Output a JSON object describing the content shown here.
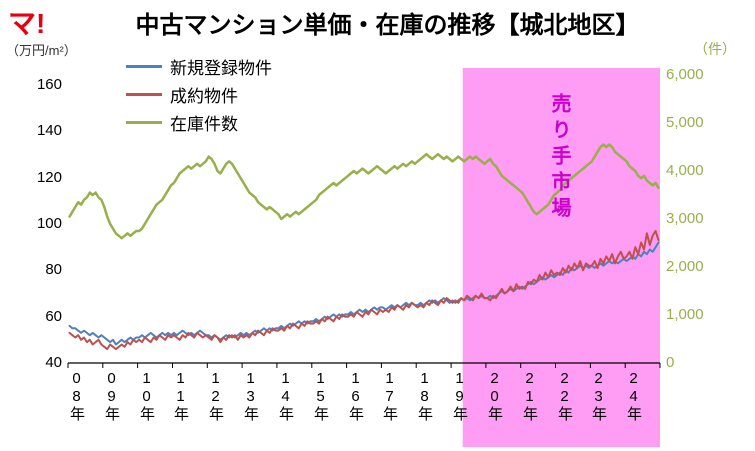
{
  "logo": "マ!",
  "chart_data": {
    "type": "line",
    "title": "中古マンション単価・在庫の推移【城北地区】",
    "left_axis": {
      "unit": "（万円/m²）",
      "min": 40,
      "max": 160,
      "ticks": [
        160,
        140,
        120,
        100,
        80,
        60,
        40
      ]
    },
    "right_axis": {
      "unit": "（件）",
      "min": 0,
      "max": 6000,
      "color": "#9aae4b",
      "ticks": [
        {
          "label": "6,000",
          "value": 6000
        },
        {
          "label": "5,000",
          "value": 5000
        },
        {
          "label": "4,000",
          "value": 4000
        },
        {
          "label": "3,000",
          "value": 3000
        },
        {
          "label": "2,000",
          "value": 2000
        },
        {
          "label": "1,000",
          "value": 1000
        },
        {
          "label": "0",
          "value": 0
        }
      ]
    },
    "x_axis": {
      "start": "2008-01",
      "end": "2024-12",
      "interval": "month",
      "tick_labels": [
        "08年",
        "09年",
        "10年",
        "11年",
        "12年",
        "13年",
        "14年",
        "15年",
        "16年",
        "17年",
        "18年",
        "19年",
        "20年",
        "21年",
        "22年",
        "23年",
        "24年"
      ]
    },
    "highlight": {
      "approx_start": "2019-05",
      "start_index": 136,
      "color": "#ff9cf3"
    },
    "annotation": {
      "text": "売り手市場",
      "color": "#cc00cc"
    },
    "series": [
      {
        "id": "new-listings",
        "name": "新規登録物件",
        "axis": "left",
        "color": "#4f81bd",
        "values": [
          56,
          55,
          55,
          54,
          53,
          54,
          53,
          52,
          53,
          52,
          51,
          52,
          51,
          50,
          49,
          50,
          48,
          49,
          50,
          49,
          50,
          51,
          50,
          51,
          51,
          52,
          51,
          52,
          53,
          52,
          51,
          52,
          53,
          52,
          53,
          52,
          53,
          52,
          53,
          54,
          53,
          52,
          53,
          52,
          53,
          54,
          53,
          52,
          52,
          51,
          52,
          51,
          50,
          51,
          52,
          51,
          52,
          51,
          52,
          53,
          52,
          53,
          52,
          53,
          54,
          53,
          54,
          55,
          54,
          55,
          54,
          55,
          55,
          56,
          55,
          56,
          57,
          56,
          57,
          58,
          57,
          58,
          57,
          58,
          58,
          59,
          58,
          59,
          60,
          59,
          60,
          61,
          60,
          61,
          60,
          61,
          61,
          62,
          61,
          62,
          63,
          62,
          63,
          62,
          63,
          64,
          63,
          64,
          64,
          63,
          64,
          65,
          64,
          65,
          64,
          65,
          66,
          65,
          66,
          65,
          65,
          66,
          65,
          66,
          67,
          66,
          67,
          66,
          67,
          68,
          67,
          66,
          67,
          66,
          67,
          68,
          67,
          68,
          67,
          68,
          69,
          68,
          69,
          68,
          68,
          69,
          68,
          69,
          70,
          71,
          70,
          71,
          72,
          71,
          72,
          73,
          72,
          73,
          74,
          75,
          74,
          75,
          76,
          77,
          76,
          77,
          78,
          77,
          78,
          79,
          78,
          80,
          79,
          81,
          80,
          81,
          82,
          81,
          82,
          81,
          82,
          81,
          82,
          83,
          82,
          83,
          84,
          83,
          84,
          83,
          84,
          85,
          84,
          85,
          86,
          85,
          87,
          86,
          88,
          87,
          89,
          88,
          90,
          92
        ]
      },
      {
        "id": "contracted",
        "name": "成約物件",
        "axis": "left",
        "color": "#c0504d",
        "values": [
          53,
          52,
          51,
          52,
          50,
          51,
          49,
          50,
          48,
          49,
          50,
          48,
          47,
          46,
          48,
          47,
          46,
          47,
          48,
          47,
          49,
          48,
          50,
          49,
          50,
          49,
          51,
          50,
          49,
          51,
          50,
          52,
          51,
          50,
          52,
          51,
          52,
          51,
          50,
          52,
          51,
          53,
          52,
          51,
          53,
          52,
          51,
          52,
          51,
          50,
          52,
          51,
          49,
          51,
          50,
          52,
          51,
          52,
          50,
          52,
          51,
          52,
          51,
          53,
          52,
          54,
          53,
          52,
          54,
          53,
          55,
          54,
          54,
          55,
          54,
          56,
          55,
          57,
          56,
          55,
          57,
          56,
          58,
          57,
          57,
          58,
          57,
          59,
          58,
          60,
          59,
          58,
          60,
          59,
          61,
          60,
          60,
          61,
          60,
          62,
          61,
          60,
          62,
          61,
          63,
          62,
          61,
          63,
          62,
          63,
          62,
          64,
          63,
          65,
          64,
          63,
          65,
          64,
          66,
          65,
          64,
          65,
          64,
          66,
          65,
          67,
          66,
          65,
          67,
          66,
          68,
          67,
          66,
          67,
          66,
          68,
          67,
          69,
          68,
          67,
          69,
          68,
          70,
          68,
          68,
          67,
          69,
          68,
          70,
          72,
          70,
          71,
          73,
          71,
          74,
          72,
          73,
          72,
          75,
          74,
          76,
          75,
          78,
          76,
          79,
          77,
          80,
          78,
          79,
          78,
          81,
          79,
          82,
          80,
          83,
          81,
          84,
          80,
          83,
          82,
          82,
          84,
          81,
          85,
          83,
          86,
          84,
          87,
          83,
          86,
          88,
          85,
          86,
          88,
          85,
          90,
          87,
          92,
          89,
          96,
          91,
          95,
          97,
          93
        ]
      },
      {
        "id": "inventory",
        "name": "在庫件数",
        "axis": "right",
        "color": "#9aae4b",
        "values": [
          3050,
          3150,
          3250,
          3350,
          3300,
          3400,
          3450,
          3550,
          3500,
          3550,
          3450,
          3400,
          3250,
          3050,
          2900,
          2800,
          2700,
          2650,
          2600,
          2650,
          2700,
          2650,
          2700,
          2750,
          2750,
          2800,
          2900,
          3000,
          3100,
          3200,
          3300,
          3350,
          3400,
          3500,
          3600,
          3700,
          3750,
          3850,
          3950,
          4000,
          4050,
          4100,
          4050,
          4100,
          4150,
          4100,
          4150,
          4200,
          4300,
          4250,
          4150,
          4000,
          3950,
          4050,
          4150,
          4200,
          4150,
          4050,
          3950,
          3850,
          3750,
          3650,
          3550,
          3500,
          3450,
          3350,
          3300,
          3250,
          3200,
          3250,
          3200,
          3150,
          3100,
          3000,
          3050,
          3100,
          3050,
          3100,
          3150,
          3100,
          3150,
          3200,
          3250,
          3300,
          3350,
          3400,
          3500,
          3550,
          3600,
          3650,
          3700,
          3750,
          3700,
          3750,
          3800,
          3850,
          3900,
          3950,
          4000,
          3950,
          4000,
          4050,
          4000,
          3950,
          4000,
          4050,
          4100,
          4050,
          4000,
          3950,
          4000,
          4050,
          4100,
          4050,
          4100,
          4150,
          4100,
          4150,
          4200,
          4150,
          4200,
          4250,
          4300,
          4350,
          4300,
          4250,
          4300,
          4350,
          4300,
          4250,
          4300,
          4250,
          4200,
          4250,
          4300,
          4250,
          4200,
          4250,
          4300,
          4250,
          4300,
          4250,
          4200,
          4150,
          4200,
          4250,
          4150,
          4100,
          4000,
          3900,
          3850,
          3800,
          3750,
          3700,
          3650,
          3600,
          3550,
          3450,
          3350,
          3250,
          3150,
          3100,
          3150,
          3200,
          3250,
          3300,
          3400,
          3500,
          3550,
          3600,
          3700,
          3750,
          3800,
          3850,
          3900,
          3950,
          4000,
          4050,
          4100,
          4150,
          4200,
          4300,
          4400,
          4500,
          4550,
          4500,
          4550,
          4500,
          4400,
          4350,
          4300,
          4250,
          4200,
          4100,
          4050,
          4000,
          3900,
          3850,
          3900,
          3800,
          3750,
          3700,
          3750,
          3650
        ]
      }
    ]
  }
}
